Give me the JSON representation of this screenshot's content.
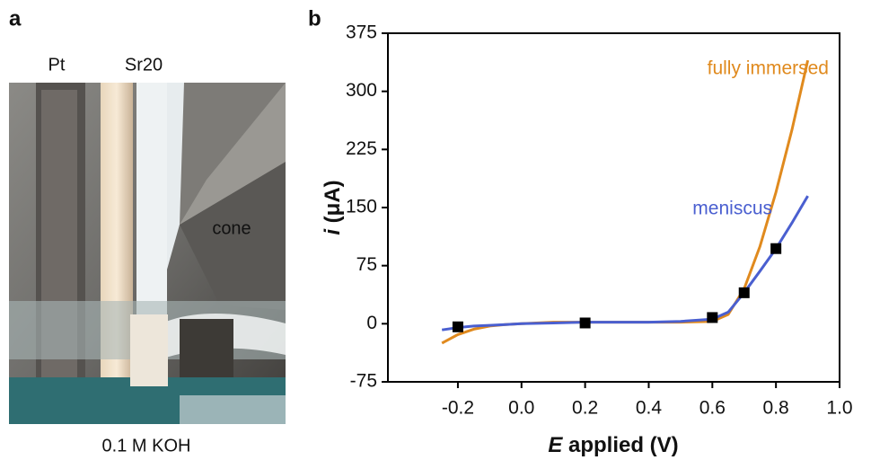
{
  "panel_a": {
    "panel_label": "a",
    "labels": [
      "Pt",
      "Sr20",
      "cone"
    ],
    "caption": "0.1 M KOH"
  },
  "chart_data": {
    "type": "line",
    "panel_label": "b",
    "xlabel_var": "E",
    "xlabel_rest": "applied (V)",
    "ylabel_var": "i",
    "ylabel_rest": "(μA)",
    "x": [
      -0.25,
      -0.2,
      -0.15,
      -0.1,
      -0.05,
      0,
      0.1,
      0.2,
      0.3,
      0.4,
      0.5,
      0.6,
      0.65,
      0.7,
      0.75,
      0.8,
      0.85,
      0.9
    ],
    "series": [
      {
        "name": "fully immersed",
        "color": "#e08a1e",
        "values": [
          -25,
          -14,
          -7,
          -3,
          -1,
          0,
          2,
          2,
          2,
          2,
          2,
          3,
          12,
          45,
          100,
          170,
          250,
          340
        ]
      },
      {
        "name": "meniscus",
        "color": "#4a5fd0",
        "values": [
          -8,
          -5,
          -3,
          -2,
          -1,
          0,
          1,
          2,
          2,
          2,
          3,
          6,
          15,
          40,
          68,
          97,
          130,
          165
        ]
      }
    ],
    "markers": {
      "color": "#000000",
      "x": [
        -0.2,
        0.2,
        0.6,
        0.7,
        0.8
      ],
      "values": [
        -4,
        1,
        8,
        40,
        97
      ]
    },
    "xlim": [
      -0.42,
      1.0
    ],
    "xticks": [
      -0.2,
      {
        "value": 0,
        "label": "0.0"
      },
      0.2,
      0.4,
      0.6,
      0.8,
      {
        "value": 1,
        "label": "1.0"
      }
    ],
    "ylim": [
      -75,
      375
    ],
    "yticks": [
      -75,
      0,
      75,
      150,
      225,
      300,
      375
    ]
  }
}
